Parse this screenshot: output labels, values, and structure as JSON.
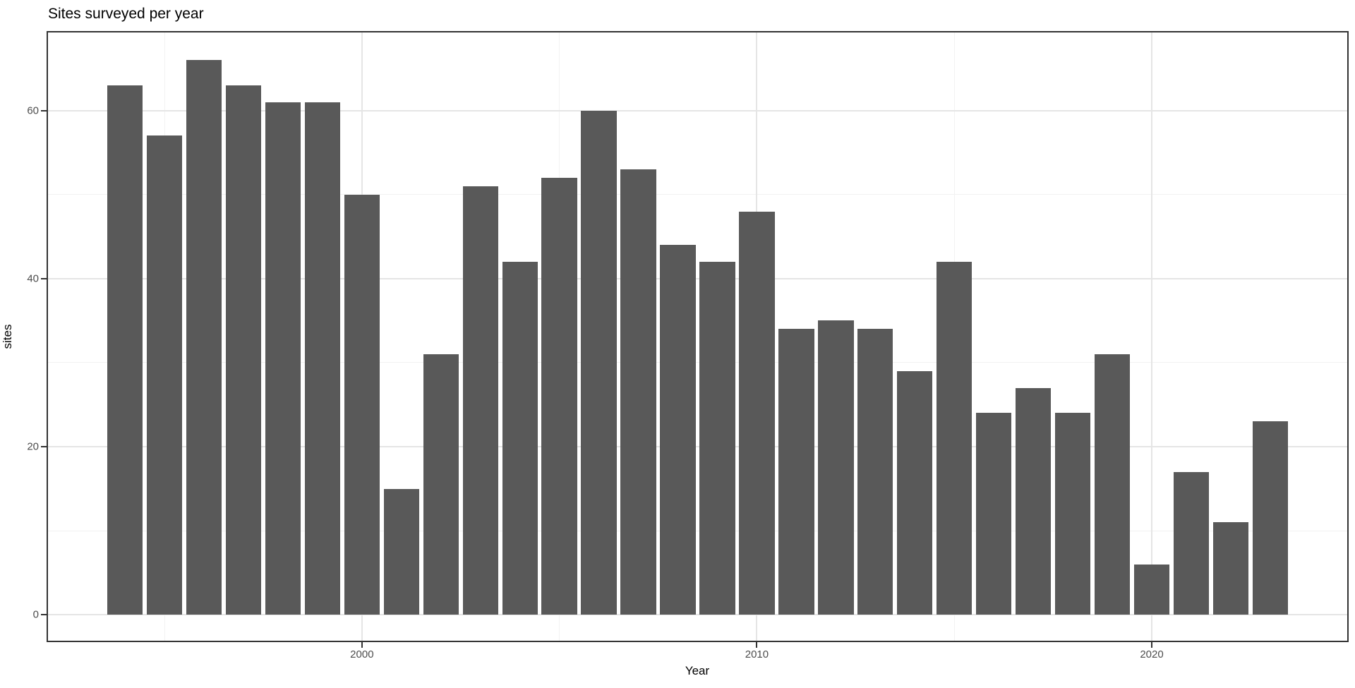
{
  "title": "Sites surveyed per year",
  "axes": {
    "x_label": "Year",
    "y_label": "sites",
    "x_ticks": [
      2000,
      2010,
      2020
    ],
    "x_minor_ticks": [
      1995,
      2005,
      2015
    ],
    "y_ticks": [
      0,
      20,
      40,
      60
    ],
    "y_minor_ticks": [
      10,
      30,
      50
    ]
  },
  "colors": {
    "bar_fill": "#595959",
    "panel_border": "#333333",
    "grid_major": "#e5e5e5",
    "grid_minor": "#f2f2f2",
    "tick_label": "#4d4d4d",
    "title_text": "#000000"
  },
  "chart_data": {
    "type": "bar",
    "title": "Sites surveyed per year",
    "xlabel": "Year",
    "ylabel": "sites",
    "categories": [
      1994,
      1995,
      1996,
      1997,
      1998,
      1999,
      2000,
      2001,
      2002,
      2003,
      2004,
      2005,
      2006,
      2007,
      2008,
      2009,
      2010,
      2011,
      2012,
      2013,
      2014,
      2015,
      2016,
      2017,
      2018,
      2019,
      2020,
      2021,
      2022,
      2023
    ],
    "values": [
      63,
      57,
      66,
      63,
      61,
      61,
      50,
      15,
      31,
      51,
      42,
      52,
      60,
      53,
      44,
      42,
      48,
      34,
      35,
      34,
      29,
      42,
      24,
      27,
      24,
      31,
      6,
      17,
      11,
      23
    ],
    "bar_width_years": 0.9,
    "xlim": [
      1992.05,
      2024.95
    ],
    "ylim": [
      -3.1,
      69.3
    ],
    "x_tick_labels": [
      "2000",
      "2010",
      "2020"
    ],
    "y_tick_labels": [
      "0",
      "20",
      "40",
      "60"
    ],
    "grid": true,
    "legend_position": "none"
  }
}
